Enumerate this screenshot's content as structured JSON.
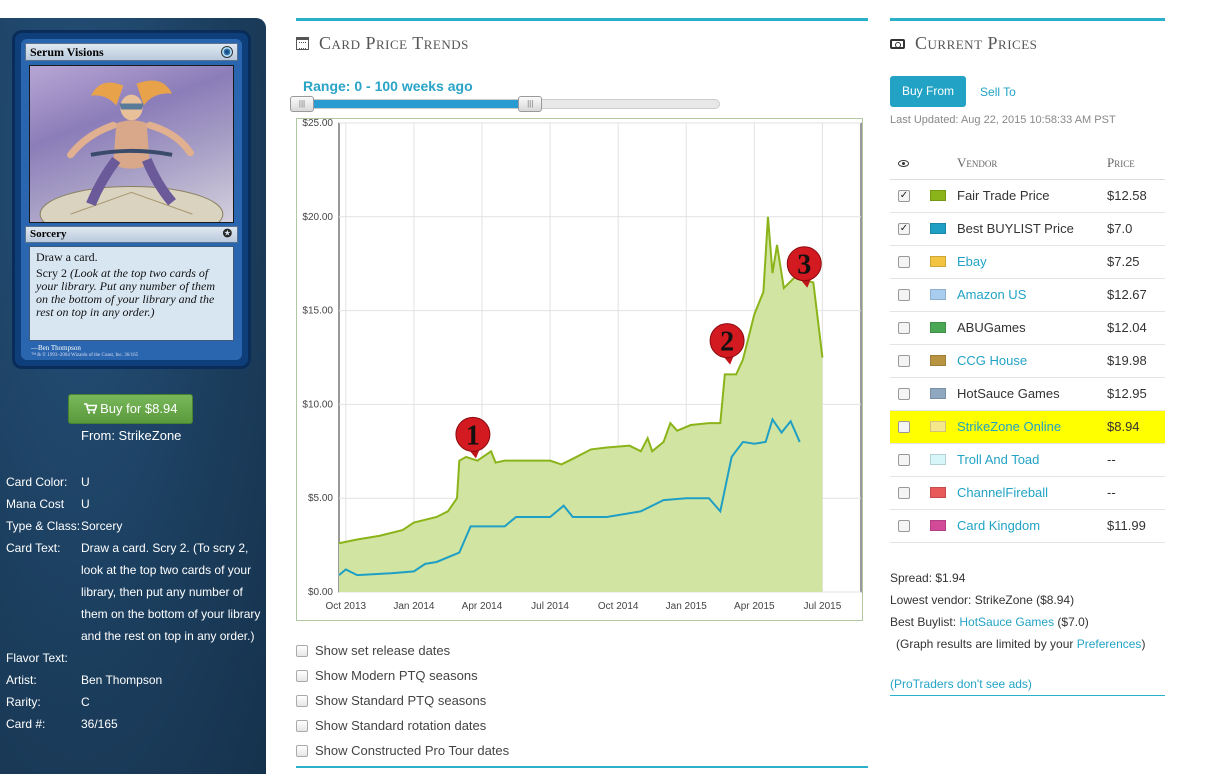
{
  "card": {
    "name": "Serum Visions",
    "type_line": "Sorcery",
    "text_line1": "Draw a card.",
    "text_line2": "Scry 2",
    "reminder": "(Look at the top two cards of your library. Put any number of them on the bottom of your library and the rest on top in any order.)",
    "artist_credit": "Ben Thompson",
    "copyright": "™ & © 1993–2004 Wizards of the Coast, Inc. 36/165"
  },
  "buy_button": {
    "label": "Buy for $8.94",
    "icon": "shopping-cart-icon"
  },
  "from_text": "From: StrikeZone",
  "details": [
    {
      "key": "Card Color:",
      "value": "U"
    },
    {
      "key": "Mana Cost",
      "value": "U"
    },
    {
      "key": "Type & Class:",
      "value": "Sorcery"
    },
    {
      "key": "Card Text:",
      "value": "Draw a card. Scry 2. (To scry 2, look at the top two cards of your library, then put any number of them on the bottom of your library and the rest on top in any order.)"
    },
    {
      "key": "Flavor Text:",
      "value": ""
    },
    {
      "key": "Artist:",
      "value": "Ben Thompson"
    },
    {
      "key": "Rarity:",
      "value": "C"
    },
    {
      "key": "Card #:",
      "value": "36/165"
    }
  ],
  "trends": {
    "title": "Card Price Trends",
    "range_label": "Range: 0 - 100 weeks ago",
    "range_fraction": 0.55,
    "options": [
      "Show set release dates",
      "Show Modern PTQ seasons",
      "Show Standard PTQ seasons",
      "Show Standard rotation dates",
      "Show Constructed Pro Tour dates"
    ]
  },
  "chart_data": {
    "type": "line",
    "title": "",
    "xlabel": "",
    "ylabel": "",
    "x_ticks": [
      "Oct 2013",
      "Jan 2014",
      "Apr 2014",
      "Jul 2014",
      "Oct 2014",
      "Jan 2015",
      "Apr 2015",
      "Jul 2015"
    ],
    "y_ticks": [
      "$0.00",
      "$5.00",
      "$10.00",
      "$15.00",
      "$20.00",
      "$25.00"
    ],
    "ylim": [
      0,
      25
    ],
    "x_unit": "months since Oct 2013",
    "xlim": [
      -0.3,
      22.7
    ],
    "series": [
      {
        "name": "Fair Trade Price",
        "color": "#8ab419",
        "fill": "#d2e4a2",
        "points": [
          [
            -0.3,
            2.6
          ],
          [
            0.5,
            2.8
          ],
          [
            1.5,
            3.0
          ],
          [
            2.5,
            3.3
          ],
          [
            3.0,
            3.7
          ],
          [
            4.0,
            4.0
          ],
          [
            4.5,
            4.3
          ],
          [
            4.9,
            5.0
          ],
          [
            5.0,
            7.0
          ],
          [
            5.3,
            7.2
          ],
          [
            5.8,
            7.0
          ],
          [
            6.4,
            7.5
          ],
          [
            6.6,
            6.9
          ],
          [
            7.0,
            7.0
          ],
          [
            9.0,
            7.0
          ],
          [
            9.5,
            6.8
          ],
          [
            10.0,
            7.1
          ],
          [
            10.8,
            7.6
          ],
          [
            11.5,
            7.7
          ],
          [
            12.5,
            7.8
          ],
          [
            13.0,
            7.5
          ],
          [
            13.3,
            8.2
          ],
          [
            13.5,
            7.5
          ],
          [
            14.0,
            8.0
          ],
          [
            14.3,
            9.0
          ],
          [
            14.6,
            8.6
          ],
          [
            15.2,
            8.9
          ],
          [
            16.0,
            9.0
          ],
          [
            16.5,
            9.0
          ],
          [
            16.7,
            11.6
          ],
          [
            17.2,
            11.6
          ],
          [
            17.5,
            12.4
          ],
          [
            18.0,
            14.8
          ],
          [
            18.4,
            16.0
          ],
          [
            18.6,
            20.0
          ],
          [
            18.8,
            17.0
          ],
          [
            19.0,
            18.5
          ],
          [
            19.3,
            16.2
          ],
          [
            19.8,
            16.8
          ],
          [
            20.6,
            16.5
          ],
          [
            21.0,
            12.5
          ]
        ]
      },
      {
        "name": "Best BUYLIST Price",
        "color": "#1f9fc4",
        "points": [
          [
            -0.3,
            0.9
          ],
          [
            0.0,
            1.2
          ],
          [
            0.5,
            0.9
          ],
          [
            2.0,
            1.0
          ],
          [
            3.0,
            1.1
          ],
          [
            3.5,
            1.5
          ],
          [
            4.0,
            1.6
          ],
          [
            5.0,
            2.1
          ],
          [
            5.5,
            3.5
          ],
          [
            7.0,
            3.5
          ],
          [
            7.5,
            4.0
          ],
          [
            9.0,
            4.0
          ],
          [
            9.6,
            4.6
          ],
          [
            10.0,
            4.0
          ],
          [
            11.5,
            4.0
          ],
          [
            13.0,
            4.3
          ],
          [
            14.0,
            4.9
          ],
          [
            15.0,
            5.0
          ],
          [
            16.0,
            5.0
          ],
          [
            16.5,
            4.3
          ],
          [
            17.0,
            7.2
          ],
          [
            17.5,
            8.0
          ],
          [
            18.0,
            7.9
          ],
          [
            18.5,
            8.0
          ],
          [
            18.8,
            9.2
          ],
          [
            19.2,
            8.5
          ],
          [
            19.6,
            9.1
          ],
          [
            20.0,
            8.0
          ]
        ]
      }
    ],
    "annotations": [
      {
        "label": "1",
        "x": 5.6,
        "y": 8.4
      },
      {
        "label": "2",
        "x": 16.8,
        "y": 13.4
      },
      {
        "label": "3",
        "x": 20.2,
        "y": 17.5
      }
    ]
  },
  "prices": {
    "title": "Current Prices",
    "tab_buy": "Buy From",
    "tab_sell": "Sell To",
    "last_updated": "Last Updated: Aug 22, 2015 10:58:33 AM PST",
    "col_vendor": "Vendor",
    "col_price": "Price",
    "vendors": [
      {
        "name": "Fair Trade Price",
        "price": "$12.58",
        "color": "#8ab419",
        "checked": true,
        "link": false,
        "highlight": false
      },
      {
        "name": "Best BUYLIST Price",
        "price": "$7.0",
        "color": "#1f9fc4",
        "checked": true,
        "link": false,
        "highlight": false
      },
      {
        "name": "Ebay",
        "price": "$7.25",
        "color": "#f2c442",
        "checked": false,
        "link": true,
        "highlight": false
      },
      {
        "name": "Amazon US",
        "price": "$12.67",
        "color": "#a9cdef",
        "checked": false,
        "link": true,
        "highlight": false
      },
      {
        "name": "ABUGames",
        "price": "$12.04",
        "color": "#4aa855",
        "checked": false,
        "link": false,
        "highlight": false
      },
      {
        "name": "CCG House",
        "price": "$19.98",
        "color": "#b89440",
        "checked": false,
        "link": true,
        "highlight": false
      },
      {
        "name": "HotSauce Games",
        "price": "$12.95",
        "color": "#8fa8c0",
        "checked": false,
        "link": false,
        "highlight": false
      },
      {
        "name": "StrikeZone Online",
        "price": "$8.94",
        "color": "#f4e78c",
        "checked": false,
        "link": true,
        "highlight": true
      },
      {
        "name": "Troll And Toad",
        "price": "--",
        "color": "#d6f6fa",
        "checked": false,
        "link": true,
        "highlight": false
      },
      {
        "name": "ChannelFireball",
        "price": "--",
        "color": "#e85a5a",
        "checked": false,
        "link": true,
        "highlight": false
      },
      {
        "name": "Card Kingdom",
        "price": "$11.99",
        "color": "#d24a98",
        "checked": false,
        "link": true,
        "highlight": false
      }
    ],
    "spread": "Spread: $1.94",
    "lowest_vendor": "Lowest vendor: StrikeZone ($8.94)",
    "best_buylist_prefix": "Best Buylist: ",
    "best_buylist_vendor": "HotSauce Games",
    "best_buylist_suffix": " ($7.0)",
    "limited_prefix": "(Graph results are limited by your ",
    "limited_link": "Preferences",
    "limited_suffix": ")",
    "protraders": "(ProTraders don't see ads)"
  }
}
